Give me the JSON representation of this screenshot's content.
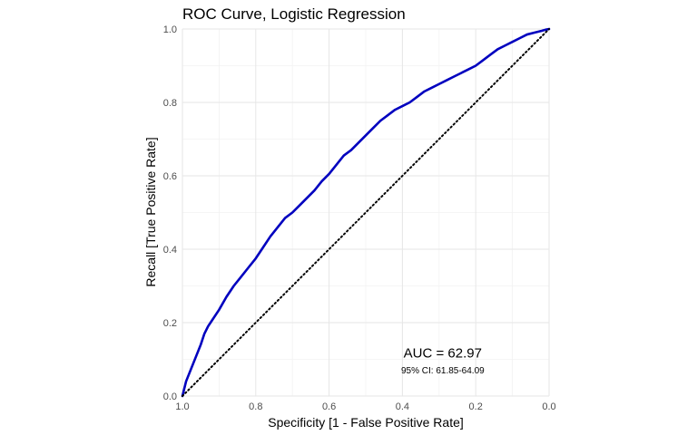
{
  "chart_data": {
    "type": "line",
    "title": "ROC Curve, Logistic Regression",
    "xlabel": "Specificity [1 - False Positive Rate]",
    "ylabel": "Recall [True Positive Rate]",
    "xlim": [
      1.0,
      0.0
    ],
    "ylim": [
      0.0,
      1.0
    ],
    "x_reversed": true,
    "xticks": [
      1.0,
      0.8,
      0.6,
      0.4,
      0.2,
      0.0
    ],
    "xtick_labels": [
      "1.0",
      "0.8",
      "0.6",
      "0.4",
      "0.2",
      "0.0"
    ],
    "yticks": [
      0.0,
      0.2,
      0.4,
      0.6,
      0.8,
      1.0
    ],
    "ytick_labels": [
      "0.0",
      "0.2",
      "0.4",
      "0.6",
      "0.8",
      "1.0"
    ],
    "grid": true,
    "series": [
      {
        "color": "#0000bf",
        "style": "solid",
        "x": [
          1.0,
          0.995,
          0.99,
          0.98,
          0.97,
          0.96,
          0.95,
          0.94,
          0.93,
          0.92,
          0.9,
          0.88,
          0.86,
          0.84,
          0.82,
          0.8,
          0.78,
          0.76,
          0.74,
          0.72,
          0.7,
          0.68,
          0.66,
          0.64,
          0.62,
          0.6,
          0.58,
          0.56,
          0.54,
          0.52,
          0.5,
          0.48,
          0.46,
          0.44,
          0.42,
          0.4,
          0.38,
          0.36,
          0.34,
          0.32,
          0.3,
          0.28,
          0.26,
          0.24,
          0.22,
          0.2,
          0.18,
          0.16,
          0.14,
          0.12,
          0.1,
          0.08,
          0.06,
          0.04,
          0.02,
          0.01,
          0.0
        ],
        "y": [
          0.0,
          0.02,
          0.04,
          0.065,
          0.09,
          0.115,
          0.14,
          0.17,
          0.19,
          0.205,
          0.235,
          0.27,
          0.3,
          0.325,
          0.35,
          0.375,
          0.405,
          0.435,
          0.46,
          0.485,
          0.5,
          0.52,
          0.54,
          0.56,
          0.585,
          0.605,
          0.63,
          0.655,
          0.67,
          0.69,
          0.71,
          0.73,
          0.75,
          0.765,
          0.78,
          0.79,
          0.8,
          0.815,
          0.83,
          0.84,
          0.85,
          0.86,
          0.87,
          0.88,
          0.89,
          0.9,
          0.915,
          0.93,
          0.945,
          0.955,
          0.965,
          0.975,
          0.985,
          0.99,
          0.995,
          0.998,
          1.0
        ]
      },
      {
        "color": "#000000",
        "style": "dotted",
        "x": [
          1.0,
          0.0
        ],
        "y": [
          0.0,
          1.0
        ]
      }
    ],
    "annotations": [
      {
        "text": "AUC = 62.97",
        "x": 0.29,
        "y": 0.105
      },
      {
        "text": "95% CI: 61.85-64.09",
        "x": 0.29,
        "y": 0.062
      }
    ]
  }
}
